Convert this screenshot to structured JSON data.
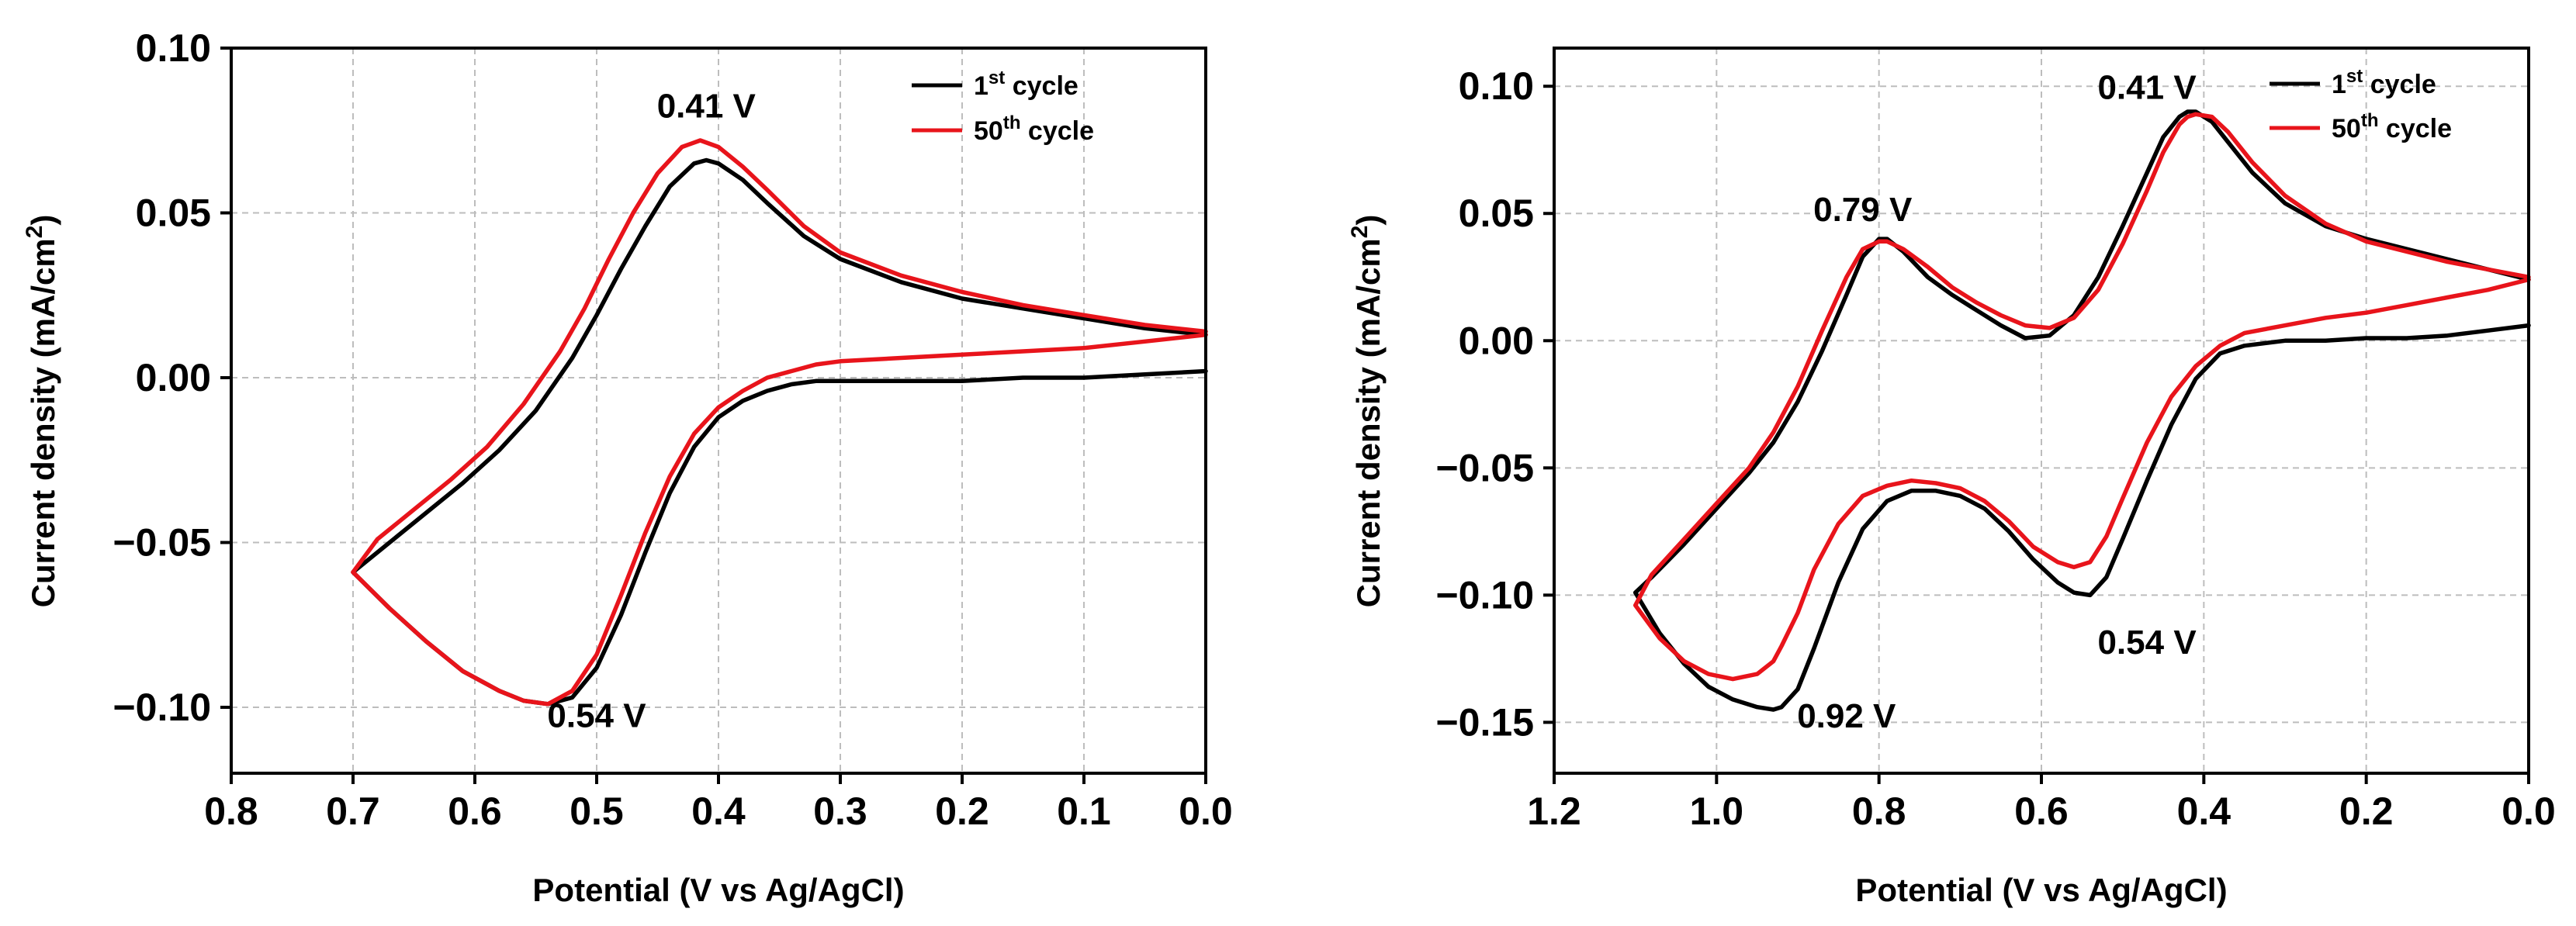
{
  "chart_data": [
    {
      "type": "line",
      "xlabel": "Potential (V vs Ag/AgCl)",
      "ylabel": "Current density (mA/cm",
      "ylabel_sup": "2",
      "ylabel_end": ")",
      "xlim": [
        0.8,
        0.0
      ],
      "ylim": [
        -0.12,
        0.1
      ],
      "x_ticks": [
        0.8,
        0.7,
        0.6,
        0.5,
        0.4,
        0.3,
        0.2,
        0.1,
        0.0
      ],
      "x_tick_labels": [
        "0.8",
        "0.7",
        "0.6",
        "0.5",
        "0.4",
        "0.3",
        "0.2",
        "0.1",
        "0.0"
      ],
      "y_ticks": [
        0.1,
        0.05,
        0.0,
        -0.05,
        -0.1
      ],
      "y_tick_labels": [
        "0.10",
        "0.05",
        "0.00",
        "-0.05",
        "-0.10"
      ],
      "legend": {
        "entries": [
          {
            "base": "1",
            "sup": "st",
            "rest": " cycle",
            "color": "#000000"
          },
          {
            "base": "50",
            "sup": "th",
            "rest": " cycle",
            "color": "#e8141b"
          }
        ]
      },
      "annotations": [
        {
          "text": "0.41 V",
          "x": 0.41,
          "y": 0.079
        },
        {
          "text": "0.54 V",
          "x": 0.5,
          "y": -0.106
        }
      ],
      "series": [
        {
          "name": "1st cycle",
          "color": "#000000",
          "x": [
            0.0,
            0.05,
            0.1,
            0.15,
            0.2,
            0.25,
            0.3,
            0.33,
            0.36,
            0.38,
            0.4,
            0.41,
            0.42,
            0.44,
            0.46,
            0.48,
            0.5,
            0.52,
            0.55,
            0.58,
            0.61,
            0.64,
            0.67,
            0.7,
            0.67,
            0.64,
            0.61,
            0.58,
            0.56,
            0.54,
            0.52,
            0.5,
            0.48,
            0.46,
            0.44,
            0.42,
            0.4,
            0.38,
            0.36,
            0.34,
            0.32,
            0.3,
            0.25,
            0.2,
            0.15,
            0.1,
            0.05,
            0.0
          ],
          "y": [
            0.013,
            0.015,
            0.018,
            0.021,
            0.024,
            0.029,
            0.036,
            0.043,
            0.053,
            0.06,
            0.065,
            0.066,
            0.065,
            0.058,
            0.046,
            0.033,
            0.019,
            0.006,
            -0.01,
            -0.022,
            -0.032,
            -0.041,
            -0.05,
            -0.059,
            -0.07,
            -0.08,
            -0.089,
            -0.095,
            -0.098,
            -0.099,
            -0.097,
            -0.088,
            -0.072,
            -0.053,
            -0.035,
            -0.021,
            -0.012,
            -0.007,
            -0.004,
            -0.002,
            -0.001,
            -0.001,
            -0.001,
            -0.001,
            0.0,
            0.0,
            0.001,
            0.002
          ]
        },
        {
          "name": "50th cycle",
          "color": "#e8141b",
          "x": [
            0.0,
            0.05,
            0.1,
            0.15,
            0.2,
            0.25,
            0.3,
            0.33,
            0.36,
            0.38,
            0.4,
            0.415,
            0.43,
            0.45,
            0.47,
            0.49,
            0.51,
            0.53,
            0.56,
            0.59,
            0.62,
            0.65,
            0.68,
            0.7,
            0.67,
            0.64,
            0.61,
            0.58,
            0.56,
            0.54,
            0.52,
            0.5,
            0.48,
            0.46,
            0.44,
            0.42,
            0.4,
            0.38,
            0.36,
            0.34,
            0.32,
            0.3,
            0.25,
            0.2,
            0.15,
            0.1,
            0.05,
            0.0
          ],
          "y": [
            0.014,
            0.016,
            0.019,
            0.022,
            0.026,
            0.031,
            0.038,
            0.046,
            0.057,
            0.064,
            0.07,
            0.072,
            0.07,
            0.062,
            0.05,
            0.036,
            0.021,
            0.008,
            -0.008,
            -0.021,
            -0.031,
            -0.04,
            -0.049,
            -0.059,
            -0.07,
            -0.08,
            -0.089,
            -0.095,
            -0.098,
            -0.099,
            -0.095,
            -0.084,
            -0.066,
            -0.047,
            -0.03,
            -0.017,
            -0.009,
            -0.004,
            0.0,
            0.002,
            0.004,
            0.005,
            0.006,
            0.007,
            0.008,
            0.009,
            0.011,
            0.013
          ]
        }
      ]
    },
    {
      "type": "line",
      "xlabel": "Potential (V vs Ag/AgCl)",
      "ylabel": "Current density (mA/cm",
      "ylabel_sup": "2",
      "ylabel_end": ")",
      "xlim": [
        1.2,
        0.0
      ],
      "ylim": [
        -0.17,
        0.115
      ],
      "x_ticks": [
        1.2,
        1.0,
        0.8,
        0.6,
        0.4,
        0.2,
        0.0
      ],
      "x_tick_labels": [
        "1.2",
        "1.0",
        "0.8",
        "0.6",
        "0.4",
        "0.2",
        "0.0"
      ],
      "y_ticks": [
        0.1,
        0.05,
        0.0,
        -0.05,
        -0.1,
        -0.15
      ],
      "y_tick_labels": [
        "0.10",
        "0.05",
        "0.00",
        "-0.05",
        "-0.10",
        "-0.15"
      ],
      "legend": {
        "entries": [
          {
            "base": "1",
            "sup": "st",
            "rest": " cycle",
            "color": "#000000"
          },
          {
            "base": "50",
            "sup": "th",
            "rest": " cycle",
            "color": "#e8141b"
          }
        ]
      },
      "annotations": [
        {
          "text": "0.41 V",
          "x": 0.47,
          "y": 0.095
        },
        {
          "text": "0.79 V",
          "x": 0.82,
          "y": 0.047
        },
        {
          "text": "0.54 V",
          "x": 0.47,
          "y": -0.123
        },
        {
          "text": "0.92 V",
          "x": 0.84,
          "y": -0.152
        }
      ],
      "series": [
        {
          "name": "1st cycle",
          "color": "#000000",
          "x": [
            0.0,
            0.05,
            0.1,
            0.15,
            0.2,
            0.25,
            0.3,
            0.34,
            0.37,
            0.39,
            0.41,
            0.42,
            0.43,
            0.45,
            0.47,
            0.5,
            0.53,
            0.56,
            0.59,
            0.62,
            0.65,
            0.68,
            0.71,
            0.74,
            0.77,
            0.79,
            0.8,
            0.82,
            0.84,
            0.87,
            0.9,
            0.93,
            0.96,
            1.0,
            1.04,
            1.08,
            1.1,
            1.07,
            1.04,
            1.01,
            0.98,
            0.95,
            0.93,
            0.92,
            0.9,
            0.88,
            0.85,
            0.82,
            0.79,
            0.76,
            0.73,
            0.7,
            0.67,
            0.64,
            0.61,
            0.58,
            0.56,
            0.54,
            0.52,
            0.5,
            0.47,
            0.44,
            0.41,
            0.38,
            0.35,
            0.3,
            0.25,
            0.2,
            0.15,
            0.1,
            0.05,
            0.0
          ],
          "y": [
            0.024,
            0.028,
            0.032,
            0.036,
            0.04,
            0.045,
            0.054,
            0.066,
            0.078,
            0.086,
            0.09,
            0.09,
            0.088,
            0.08,
            0.066,
            0.045,
            0.025,
            0.01,
            0.002,
            0.001,
            0.006,
            0.012,
            0.018,
            0.025,
            0.035,
            0.04,
            0.04,
            0.033,
            0.018,
            -0.004,
            -0.024,
            -0.04,
            -0.052,
            -0.066,
            -0.08,
            -0.093,
            -0.099,
            -0.115,
            -0.127,
            -0.136,
            -0.141,
            -0.144,
            -0.145,
            -0.144,
            -0.137,
            -0.121,
            -0.095,
            -0.074,
            -0.063,
            -0.059,
            -0.059,
            -0.061,
            -0.066,
            -0.075,
            -0.086,
            -0.095,
            -0.099,
            -0.1,
            -0.093,
            -0.078,
            -0.055,
            -0.033,
            -0.015,
            -0.005,
            -0.002,
            0.0,
            0.0,
            0.001,
            0.001,
            0.002,
            0.004,
            0.006
          ]
        },
        {
          "name": "50th cycle",
          "color": "#e8141b",
          "x": [
            0.0,
            0.05,
            0.1,
            0.15,
            0.2,
            0.25,
            0.3,
            0.34,
            0.37,
            0.39,
            0.41,
            0.42,
            0.43,
            0.45,
            0.47,
            0.5,
            0.53,
            0.56,
            0.59,
            0.62,
            0.65,
            0.68,
            0.71,
            0.74,
            0.77,
            0.79,
            0.8,
            0.82,
            0.84,
            0.87,
            0.9,
            0.93,
            0.96,
            1.0,
            1.04,
            1.08,
            1.1,
            1.07,
            1.04,
            1.01,
            0.98,
            0.95,
            0.93,
            0.92,
            0.9,
            0.88,
            0.85,
            0.82,
            0.79,
            0.76,
            0.73,
            0.7,
            0.67,
            0.64,
            0.61,
            0.58,
            0.56,
            0.54,
            0.52,
            0.5,
            0.47,
            0.44,
            0.41,
            0.38,
            0.35,
            0.3,
            0.25,
            0.2,
            0.15,
            0.1,
            0.05,
            0.0
          ],
          "y": [
            0.025,
            0.028,
            0.031,
            0.035,
            0.039,
            0.046,
            0.057,
            0.07,
            0.082,
            0.088,
            0.089,
            0.088,
            0.085,
            0.074,
            0.059,
            0.038,
            0.02,
            0.009,
            0.005,
            0.006,
            0.01,
            0.015,
            0.021,
            0.029,
            0.036,
            0.039,
            0.039,
            0.036,
            0.025,
            0.004,
            -0.018,
            -0.036,
            -0.05,
            -0.064,
            -0.078,
            -0.092,
            -0.104,
            -0.117,
            -0.126,
            -0.131,
            -0.133,
            -0.131,
            -0.126,
            -0.12,
            -0.107,
            -0.09,
            -0.072,
            -0.061,
            -0.057,
            -0.055,
            -0.056,
            -0.058,
            -0.063,
            -0.071,
            -0.081,
            -0.087,
            -0.089,
            -0.087,
            -0.077,
            -0.062,
            -0.04,
            -0.022,
            -0.01,
            -0.002,
            0.003,
            0.006,
            0.009,
            0.011,
            0.014,
            0.017,
            0.02,
            0.024
          ]
        }
      ]
    }
  ]
}
